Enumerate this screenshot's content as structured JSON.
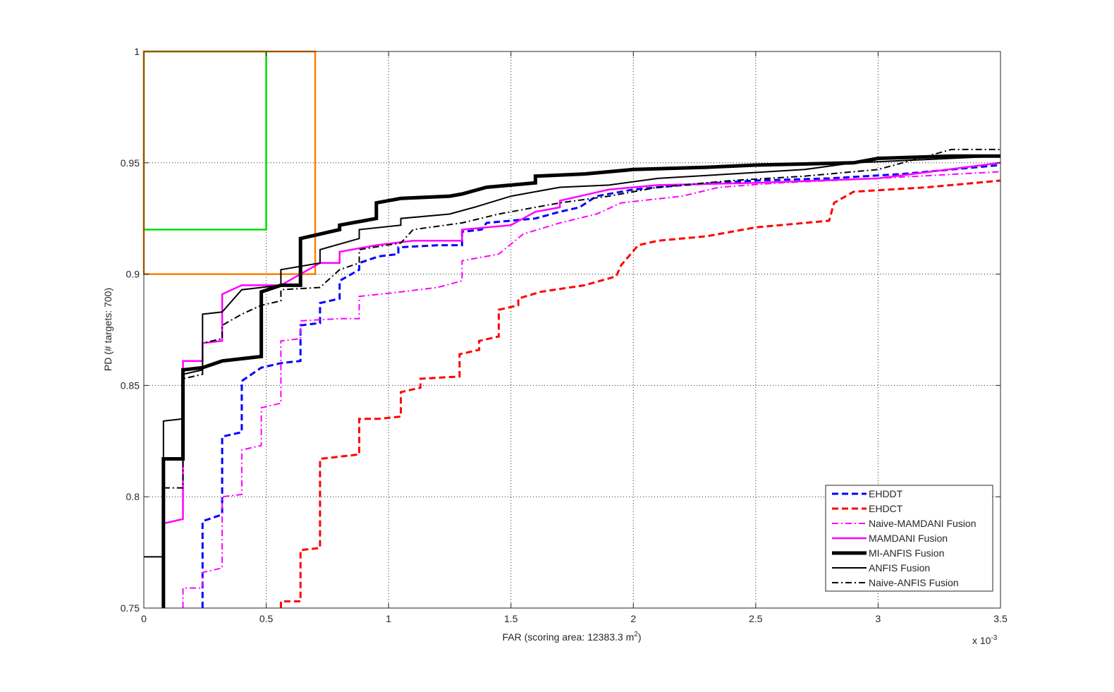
{
  "chart_data": {
    "type": "line",
    "title": "",
    "xlabel_prefix": "FAR (scoring area: 12383.3 m",
    "xlabel_sup": "2",
    "xlabel_suffix": ")",
    "ylabel": "PD (# targets: 700)",
    "x_exponent_label": "x 10",
    "x_exponent_power": "-3",
    "xlim": [
      0,
      3.5
    ],
    "ylim": [
      0.75,
      1.0
    ],
    "x_scale_note": "x values in units of 10^-3",
    "x_ticks": [
      "0",
      "0.5",
      "1",
      "1.5",
      "2",
      "2.5",
      "3",
      "3.5"
    ],
    "y_ticks": [
      "0.75",
      "0.8",
      "0.85",
      "0.9",
      "0.95",
      "1"
    ],
    "grid": true,
    "legend_position": "bottom-right",
    "rectangles": [
      {
        "color": "#00dd00",
        "x": [
          0,
          0.5
        ],
        "y": [
          0.92,
          1.0
        ]
      },
      {
        "color": "#ff7f00",
        "x": [
          0,
          0.7
        ],
        "y": [
          0.9,
          1.0
        ]
      }
    ],
    "series": [
      {
        "name": "EHDDT",
        "color": "#0000ff",
        "dash": "dashed",
        "width": 3,
        "points": [
          [
            0.24,
            0.75
          ],
          [
            0.24,
            0.789
          ],
          [
            0.32,
            0.792
          ],
          [
            0.32,
            0.827
          ],
          [
            0.4,
            0.829
          ],
          [
            0.4,
            0.852
          ],
          [
            0.48,
            0.858
          ],
          [
            0.56,
            0.86
          ],
          [
            0.64,
            0.861
          ],
          [
            0.64,
            0.877
          ],
          [
            0.72,
            0.878
          ],
          [
            0.72,
            0.887
          ],
          [
            0.8,
            0.889
          ],
          [
            0.8,
            0.897
          ],
          [
            0.88,
            0.902
          ],
          [
            0.88,
            0.905
          ],
          [
            0.96,
            0.908
          ],
          [
            1.04,
            0.909
          ],
          [
            1.04,
            0.912
          ],
          [
            1.2,
            0.913
          ],
          [
            1.3,
            0.913
          ],
          [
            1.3,
            0.919
          ],
          [
            1.38,
            0.92
          ],
          [
            1.4,
            0.923
          ],
          [
            1.6,
            0.925
          ],
          [
            1.7,
            0.928
          ],
          [
            1.78,
            0.93
          ],
          [
            1.85,
            0.935
          ],
          [
            2.0,
            0.938
          ],
          [
            2.2,
            0.94
          ],
          [
            2.5,
            0.942
          ],
          [
            2.8,
            0.943
          ],
          [
            3.1,
            0.945
          ],
          [
            3.5,
            0.949
          ]
        ]
      },
      {
        "name": "EHDCT",
        "color": "#ff0000",
        "dash": "dashed",
        "width": 3,
        "points": [
          [
            0.56,
            0.75
          ],
          [
            0.56,
            0.753
          ],
          [
            0.64,
            0.753
          ],
          [
            0.64,
            0.776
          ],
          [
            0.72,
            0.777
          ],
          [
            0.72,
            0.817
          ],
          [
            0.8,
            0.818
          ],
          [
            0.88,
            0.819
          ],
          [
            0.88,
            0.835
          ],
          [
            0.96,
            0.835
          ],
          [
            1.05,
            0.836
          ],
          [
            1.05,
            0.847
          ],
          [
            1.13,
            0.849
          ],
          [
            1.13,
            0.853
          ],
          [
            1.29,
            0.854
          ],
          [
            1.29,
            0.864
          ],
          [
            1.37,
            0.866
          ],
          [
            1.37,
            0.87
          ],
          [
            1.45,
            0.872
          ],
          [
            1.45,
            0.884
          ],
          [
            1.53,
            0.886
          ],
          [
            1.53,
            0.889
          ],
          [
            1.62,
            0.892
          ],
          [
            1.8,
            0.895
          ],
          [
            1.93,
            0.899
          ],
          [
            1.95,
            0.904
          ],
          [
            2.02,
            0.913
          ],
          [
            2.1,
            0.915
          ],
          [
            2.3,
            0.917
          ],
          [
            2.5,
            0.921
          ],
          [
            2.8,
            0.924
          ],
          [
            2.82,
            0.932
          ],
          [
            2.9,
            0.937
          ],
          [
            3.2,
            0.939
          ],
          [
            3.5,
            0.942
          ]
        ]
      },
      {
        "name": "Naive-MAMDANI Fusion",
        "color": "#ff00ff",
        "dash": "dashdot",
        "width": 2,
        "points": [
          [
            0.16,
            0.75
          ],
          [
            0.16,
            0.759
          ],
          [
            0.24,
            0.759
          ],
          [
            0.24,
            0.766
          ],
          [
            0.32,
            0.768
          ],
          [
            0.32,
            0.8
          ],
          [
            0.4,
            0.801
          ],
          [
            0.4,
            0.821
          ],
          [
            0.48,
            0.823
          ],
          [
            0.48,
            0.84
          ],
          [
            0.56,
            0.842
          ],
          [
            0.56,
            0.87
          ],
          [
            0.64,
            0.871
          ],
          [
            0.64,
            0.879
          ],
          [
            0.8,
            0.88
          ],
          [
            0.88,
            0.88
          ],
          [
            0.88,
            0.89
          ],
          [
            1.05,
            0.892
          ],
          [
            1.2,
            0.894
          ],
          [
            1.3,
            0.897
          ],
          [
            1.3,
            0.906
          ],
          [
            1.45,
            0.909
          ],
          [
            1.55,
            0.918
          ],
          [
            1.7,
            0.923
          ],
          [
            1.85,
            0.927
          ],
          [
            1.95,
            0.932
          ],
          [
            2.2,
            0.935
          ],
          [
            2.35,
            0.939
          ],
          [
            2.6,
            0.941
          ],
          [
            3.0,
            0.943
          ],
          [
            3.5,
            0.946
          ]
        ]
      },
      {
        "name": "MAMDANI Fusion",
        "color": "#ff00ff",
        "dash": "solid",
        "width": 2.5,
        "points": [
          [
            0.08,
            0.788
          ],
          [
            0.16,
            0.79
          ],
          [
            0.16,
            0.861
          ],
          [
            0.24,
            0.861
          ],
          [
            0.24,
            0.869
          ],
          [
            0.32,
            0.87
          ],
          [
            0.32,
            0.891
          ],
          [
            0.4,
            0.895
          ],
          [
            0.56,
            0.895
          ],
          [
            0.64,
            0.9
          ],
          [
            0.72,
            0.905
          ],
          [
            0.8,
            0.905
          ],
          [
            0.8,
            0.91
          ],
          [
            0.95,
            0.913
          ],
          [
            1.1,
            0.915
          ],
          [
            1.3,
            0.915
          ],
          [
            1.3,
            0.92
          ],
          [
            1.5,
            0.922
          ],
          [
            1.6,
            0.928
          ],
          [
            1.7,
            0.93
          ],
          [
            1.7,
            0.933
          ],
          [
            1.9,
            0.938
          ],
          [
            2.1,
            0.94
          ],
          [
            2.5,
            0.941
          ],
          [
            3.0,
            0.943
          ],
          [
            3.5,
            0.95
          ]
        ]
      },
      {
        "name": "MI-ANFIS Fusion",
        "color": "#000000",
        "dash": "solid",
        "width": 5,
        "points": [
          [
            0.08,
            0.75
          ],
          [
            0.08,
            0.817
          ],
          [
            0.16,
            0.817
          ],
          [
            0.16,
            0.857
          ],
          [
            0.24,
            0.858
          ],
          [
            0.32,
            0.861
          ],
          [
            0.4,
            0.862
          ],
          [
            0.48,
            0.863
          ],
          [
            0.48,
            0.892
          ],
          [
            0.56,
            0.895
          ],
          [
            0.64,
            0.895
          ],
          [
            0.64,
            0.916
          ],
          [
            0.72,
            0.918
          ],
          [
            0.8,
            0.92
          ],
          [
            0.8,
            0.922
          ],
          [
            0.95,
            0.925
          ],
          [
            0.95,
            0.932
          ],
          [
            1.05,
            0.934
          ],
          [
            1.25,
            0.935
          ],
          [
            1.3,
            0.936
          ],
          [
            1.4,
            0.939
          ],
          [
            1.6,
            0.941
          ],
          [
            1.6,
            0.944
          ],
          [
            1.8,
            0.945
          ],
          [
            2.0,
            0.947
          ],
          [
            2.3,
            0.948
          ],
          [
            2.5,
            0.949
          ],
          [
            2.9,
            0.95
          ],
          [
            3.0,
            0.952
          ],
          [
            3.3,
            0.953
          ],
          [
            3.5,
            0.953
          ]
        ]
      },
      {
        "name": "ANFIS Fusion",
        "color": "#000000",
        "dash": "solid",
        "width": 2,
        "points": [
          [
            0.0,
            0.773
          ],
          [
            0.08,
            0.773
          ],
          [
            0.08,
            0.834
          ],
          [
            0.16,
            0.835
          ],
          [
            0.16,
            0.855
          ],
          [
            0.24,
            0.857
          ],
          [
            0.24,
            0.882
          ],
          [
            0.32,
            0.883
          ],
          [
            0.4,
            0.893
          ],
          [
            0.56,
            0.895
          ],
          [
            0.56,
            0.902
          ],
          [
            0.72,
            0.905
          ],
          [
            0.72,
            0.911
          ],
          [
            0.88,
            0.916
          ],
          [
            0.88,
            0.92
          ],
          [
            1.05,
            0.922
          ],
          [
            1.05,
            0.925
          ],
          [
            1.25,
            0.927
          ],
          [
            1.35,
            0.93
          ],
          [
            1.5,
            0.935
          ],
          [
            1.7,
            0.939
          ],
          [
            1.9,
            0.94
          ],
          [
            2.1,
            0.943
          ],
          [
            2.4,
            0.945
          ],
          [
            2.7,
            0.947
          ],
          [
            2.9,
            0.95
          ],
          [
            3.3,
            0.952
          ],
          [
            3.5,
            0.953
          ]
        ]
      },
      {
        "name": "Naive-ANFIS Fusion",
        "color": "#000000",
        "dash": "dashdot",
        "width": 2,
        "points": [
          [
            0.08,
            0.804
          ],
          [
            0.16,
            0.804
          ],
          [
            0.16,
            0.853
          ],
          [
            0.24,
            0.855
          ],
          [
            0.24,
            0.869
          ],
          [
            0.32,
            0.871
          ],
          [
            0.32,
            0.877
          ],
          [
            0.4,
            0.882
          ],
          [
            0.48,
            0.886
          ],
          [
            0.56,
            0.888
          ],
          [
            0.56,
            0.893
          ],
          [
            0.72,
            0.894
          ],
          [
            0.8,
            0.902
          ],
          [
            0.88,
            0.905
          ],
          [
            0.88,
            0.911
          ],
          [
            1.05,
            0.914
          ],
          [
            1.1,
            0.92
          ],
          [
            1.3,
            0.923
          ],
          [
            1.45,
            0.927
          ],
          [
            1.6,
            0.93
          ],
          [
            1.7,
            0.932
          ],
          [
            1.9,
            0.935
          ],
          [
            2.1,
            0.939
          ],
          [
            2.4,
            0.942
          ],
          [
            2.7,
            0.944
          ],
          [
            3.0,
            0.947
          ],
          [
            3.3,
            0.956
          ],
          [
            3.5,
            0.956
          ]
        ]
      }
    ]
  }
}
